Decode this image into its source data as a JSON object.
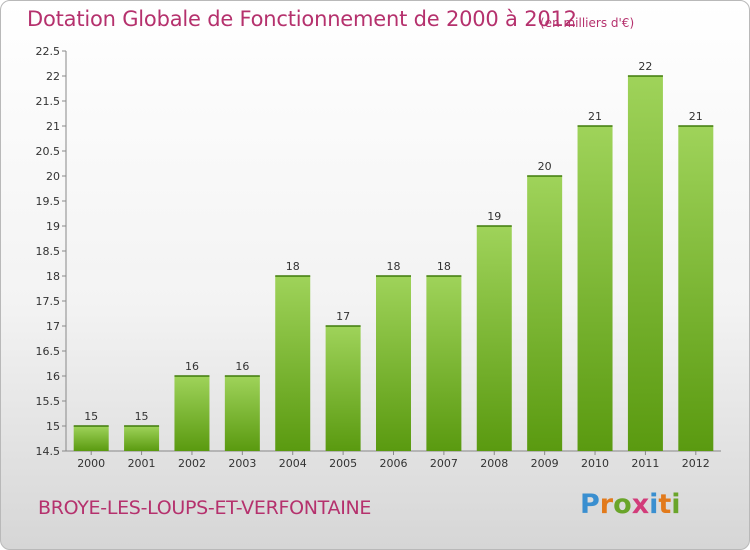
{
  "page": {
    "title": "Dotation Globale de Fonctionnement de 2000 à 2012",
    "unit_note": "(en milliers d'€)",
    "commune": "BROYE-LES-LOUPS-ET-VERFONTAINE",
    "brand": {
      "letters": [
        "P",
        "r",
        "o",
        "x",
        "i",
        "t",
        "i"
      ],
      "colors": [
        "#3a8fd0",
        "#e27a1b",
        "#6aa52a",
        "#d23c7a",
        "#3a8fd0",
        "#e27a1b",
        "#6aa52a"
      ]
    },
    "colors": {
      "title": "#b5316d",
      "bar_top": "#9fd35a",
      "bar_bottom": "#5a9a10"
    }
  },
  "chart_data": {
    "type": "bar",
    "title": "Dotation Globale de Fonctionnement de 2000 à 2012",
    "subtitle": "(en milliers d'€)",
    "xlabel": "",
    "ylabel": "",
    "categories": [
      "2000",
      "2001",
      "2002",
      "2003",
      "2004",
      "2005",
      "2006",
      "2007",
      "2008",
      "2009",
      "2010",
      "2011",
      "2012"
    ],
    "values": [
      15,
      15,
      16,
      16,
      18,
      17,
      18,
      18,
      19,
      20,
      21,
      22,
      21
    ],
    "value_labels": [
      "15",
      "15",
      "16",
      "16",
      "18",
      "17",
      "18",
      "18",
      "19",
      "20",
      "21",
      "22",
      "21"
    ],
    "ylim": [
      14.5,
      22.5
    ],
    "yticks": [
      "14.5",
      "15",
      "15.5",
      "16",
      "16.5",
      "17",
      "17.5",
      "18",
      "18.5",
      "19",
      "19.5",
      "20",
      "20.5",
      "21",
      "21.5",
      "22",
      "22.5"
    ],
    "grid": false,
    "legend": "none"
  }
}
